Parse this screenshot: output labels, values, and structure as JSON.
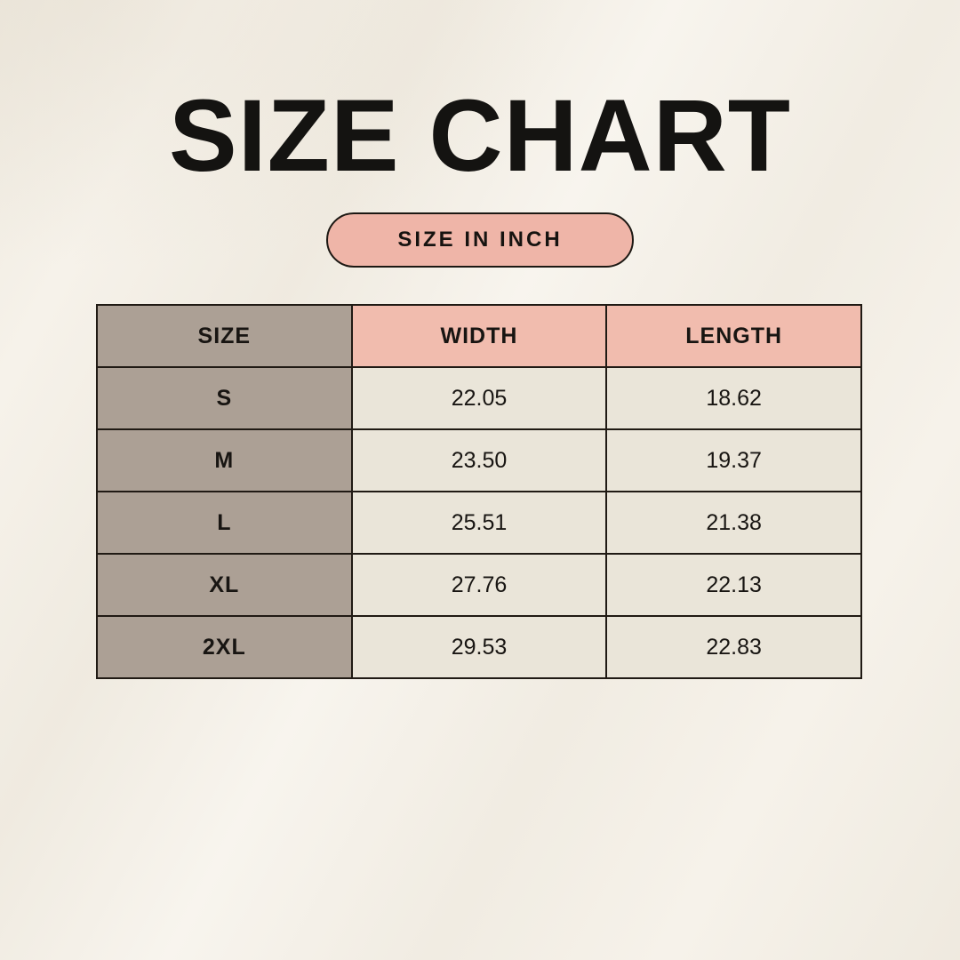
{
  "header": {
    "title": "SIZE CHART",
    "badge": "SIZE IN INCH"
  },
  "table": {
    "headers": [
      "SIZE",
      "WIDTH",
      "LENGTH"
    ],
    "rows": [
      {
        "size": "S",
        "width": "22.05",
        "length": "18.62"
      },
      {
        "size": "M",
        "width": "23.50",
        "length": "19.37"
      },
      {
        "size": "L",
        "width": "25.51",
        "length": "21.38"
      },
      {
        "size": "XL",
        "width": "27.76",
        "length": "22.13"
      },
      {
        "size": "2XL",
        "width": "29.53",
        "length": "22.83"
      }
    ]
  },
  "colors": {
    "background": "#f6f2ea",
    "title_text": "#141311",
    "badge_fill": "#efb5a8",
    "header_pink": "#f1bcae",
    "label_taupe": "#aca095",
    "cell_cream": "#eae5d9",
    "border_black": "#201a14"
  },
  "chart_data": {
    "type": "table",
    "title": "SIZE CHART",
    "unit_label": "SIZE IN INCH",
    "columns": [
      "SIZE",
      "WIDTH",
      "LENGTH"
    ],
    "rows": [
      [
        "S",
        22.05,
        18.62
      ],
      [
        "M",
        23.5,
        19.37
      ],
      [
        "L",
        25.51,
        21.38
      ],
      [
        "XL",
        27.76,
        22.13
      ],
      [
        "2XL",
        29.53,
        22.83
      ]
    ]
  }
}
